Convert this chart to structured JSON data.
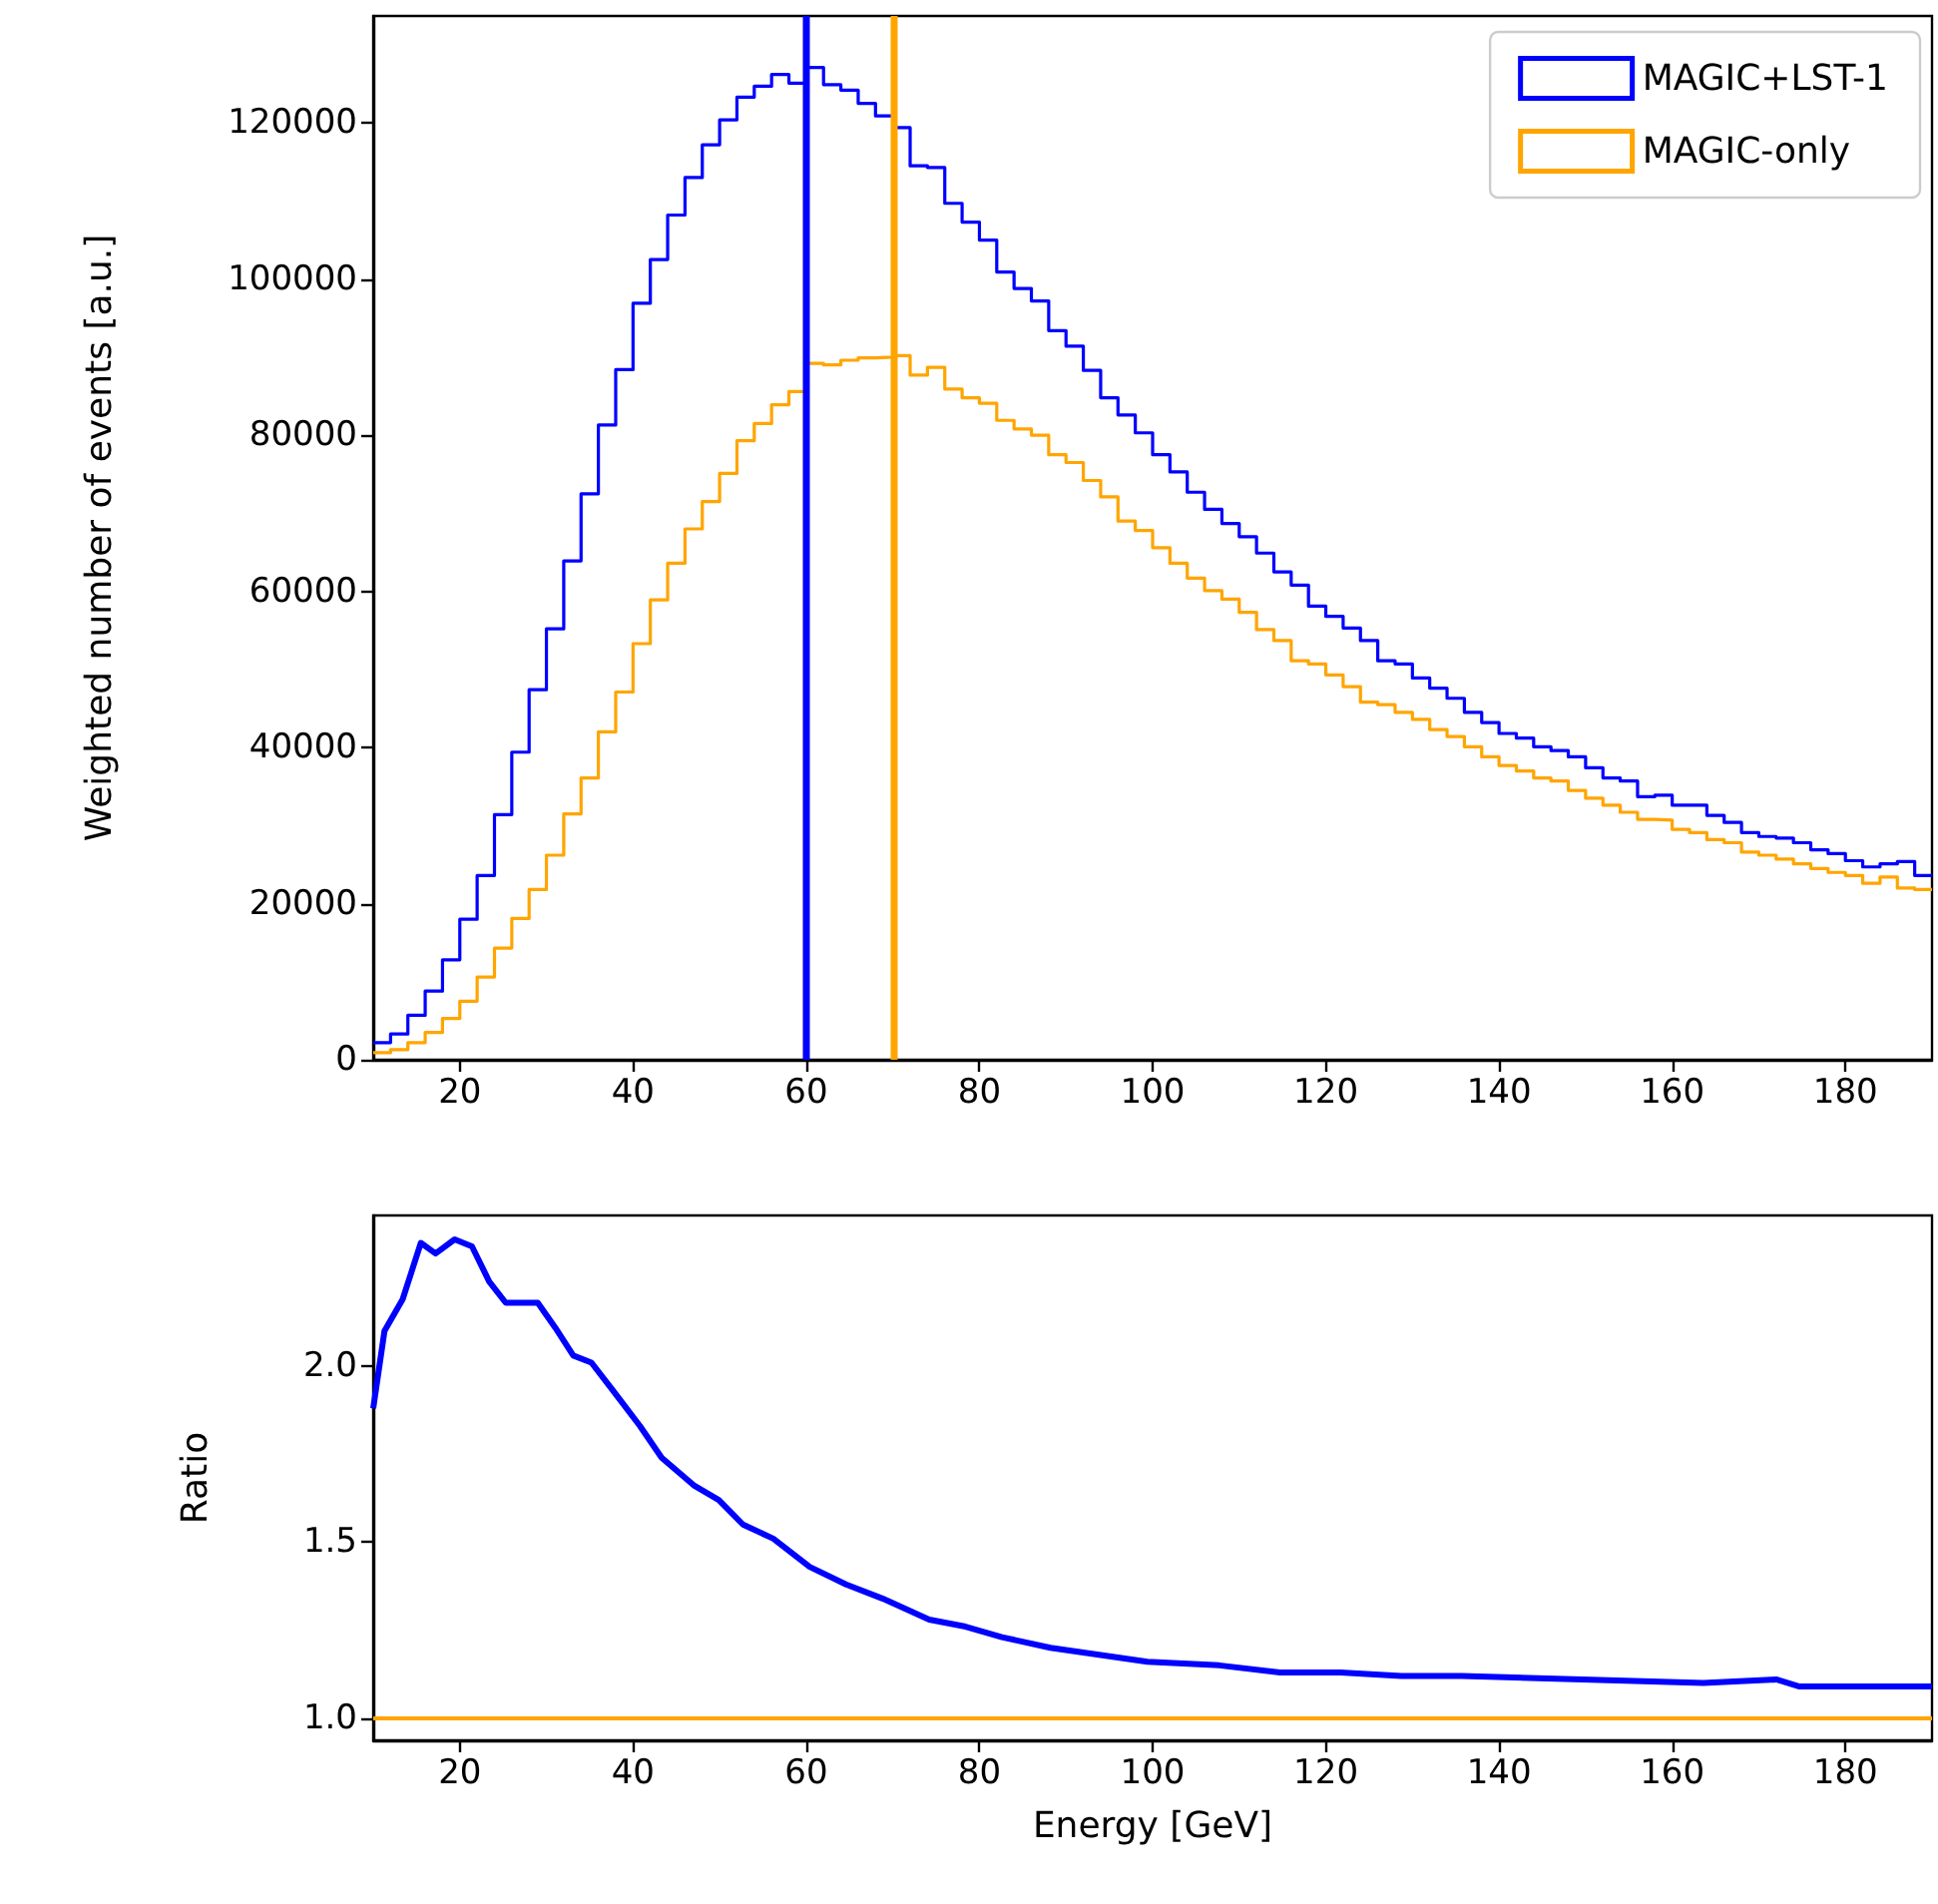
{
  "chart_data": [
    {
      "type": "histogram",
      "ylabel": "Weighted number of events [a.u.]",
      "bins": [
        10,
        12,
        14,
        16,
        18,
        20,
        22,
        24,
        26,
        28,
        30,
        32,
        34,
        36,
        38,
        40,
        42,
        44,
        46,
        48,
        50,
        52,
        54,
        56,
        58,
        60,
        62,
        64,
        66,
        68,
        70,
        72,
        74,
        76,
        78,
        80,
        82,
        84,
        86,
        88,
        90,
        92,
        94,
        96,
        98,
        100,
        102,
        104,
        106,
        108,
        110,
        112,
        114,
        116,
        118,
        120,
        122,
        124,
        126,
        128,
        130,
        132,
        134,
        136,
        138,
        140,
        142,
        144,
        146,
        148,
        150,
        152,
        154,
        156,
        158,
        160,
        162,
        164,
        166,
        168,
        170,
        172,
        174,
        176,
        178,
        180,
        182,
        184,
        186,
        188,
        190
      ],
      "series": [
        {
          "name": "MAGIC+LST-1",
          "color": "#0000ff",
          "values": [
            2200,
            3300,
            5700,
            8800,
            12800,
            18000,
            23600,
            31400,
            39400,
            47400,
            55200,
            63900,
            72500,
            81300,
            88400,
            96900,
            102500,
            108200,
            113000,
            117200,
            120400,
            123300,
            124700,
            126200,
            125100,
            127100,
            124900,
            124200,
            122500,
            120900,
            119400,
            114500,
            114300,
            109700,
            107300,
            105000,
            100900,
            98800,
            97200,
            93400,
            91400,
            88300,
            84800,
            82600,
            80300,
            77500,
            75300,
            72700,
            70500,
            68700,
            67000,
            64900,
            62500,
            60800,
            58100,
            56800,
            55300,
            53700,
            51100,
            50700,
            48900,
            47600,
            46300,
            44500,
            43200,
            41800,
            41200,
            40100,
            39600,
            38800,
            37400,
            36100,
            35700,
            33700,
            33900,
            32600,
            32600,
            31300,
            30400,
            29100,
            28600,
            28400,
            27800,
            26900,
            26400,
            25500,
            24700,
            25100,
            25400,
            23600
          ]
        },
        {
          "name": "MAGIC-only",
          "color": "#ffa500",
          "values": [
            900,
            1300,
            2200,
            3500,
            5300,
            7500,
            10600,
            14300,
            18100,
            21800,
            26200,
            31500,
            36100,
            42000,
            47100,
            53300,
            58900,
            63600,
            68000,
            71500,
            75100,
            79300,
            81500,
            83900,
            85600,
            89200,
            89000,
            89600,
            89900,
            90000,
            90200,
            87700,
            88700,
            85900,
            84800,
            84100,
            81900,
            80800,
            80000,
            77500,
            76500,
            74200,
            72100,
            69000,
            67800,
            65600,
            63600,
            61700,
            60100,
            59000,
            57300,
            55100,
            53700,
            51100,
            50700,
            49300,
            47800,
            45800,
            45500,
            44500,
            43600,
            42300,
            41400,
            40100,
            38800,
            37700,
            37000,
            36100,
            35700,
            34500,
            33500,
            32600,
            31700,
            30800,
            30700,
            29500,
            29100,
            28200,
            27800,
            26600,
            26200,
            25700,
            25100,
            24500,
            24000,
            23600,
            22600,
            23400,
            22000,
            21800
          ]
        }
      ],
      "xlim": [
        10,
        190
      ],
      "xticks": [
        20,
        40,
        60,
        80,
        100,
        120,
        140,
        160,
        180
      ],
      "ylim": [
        0,
        133700
      ],
      "yticks": [
        0,
        20000,
        40000,
        60000,
        80000,
        100000,
        120000
      ],
      "legend": "top right",
      "ref_lines": [
        {
          "axis": "x",
          "value": 60,
          "label": null,
          "color": "#0000ff"
        },
        {
          "axis": "x",
          "value": 70,
          "label": null,
          "color": "#ffa500"
        }
      ]
    },
    {
      "type": "line",
      "xlabel": "Energy [GeV]",
      "ylabel": "Ratio",
      "x": [
        10,
        11.3,
        13.4,
        15.5,
        17.2,
        19.4,
        21.4,
        23.4,
        25.3,
        29,
        31,
        33.1,
        35.2,
        37.7,
        40.8,
        43.3,
        47.1,
        49.9,
        52.7,
        56.2,
        60.4,
        64.6,
        68.8,
        74.2,
        78.4,
        82.6,
        88.2,
        93.8,
        99.4,
        107.7,
        114.7,
        121.7,
        128.7,
        135.7,
        149.6,
        163.6,
        172,
        174.7,
        187,
        190
      ],
      "series": [
        {
          "color": "#0000ff",
          "values": [
            1.88,
            2.1,
            2.19,
            2.35,
            2.32,
            2.36,
            2.34,
            2.24,
            2.18,
            2.18,
            2.11,
            2.03,
            2.01,
            1.93,
            1.83,
            1.74,
            1.66,
            1.62,
            1.55,
            1.51,
            1.43,
            1.38,
            1.34,
            1.28,
            1.26,
            1.23,
            1.2,
            1.18,
            1.16,
            1.15,
            1.13,
            1.13,
            1.12,
            1.12,
            1.11,
            1.1,
            1.11,
            1.09,
            1.09,
            1.09
          ]
        }
      ],
      "xlim": [
        10,
        190
      ],
      "xticks": [
        20,
        40,
        60,
        80,
        100,
        120,
        140,
        160,
        180
      ],
      "ylim": [
        0.937,
        2.428
      ],
      "yticks": [
        {
          "value": 1,
          "label": "1.0"
        },
        {
          "value": 1.5,
          "label": "1.5"
        },
        {
          "value": 2,
          "label": "2.0"
        }
      ],
      "ref_lines": [
        {
          "axis": "y",
          "value": 1,
          "label": null,
          "color": "#ffa500"
        }
      ]
    }
  ]
}
